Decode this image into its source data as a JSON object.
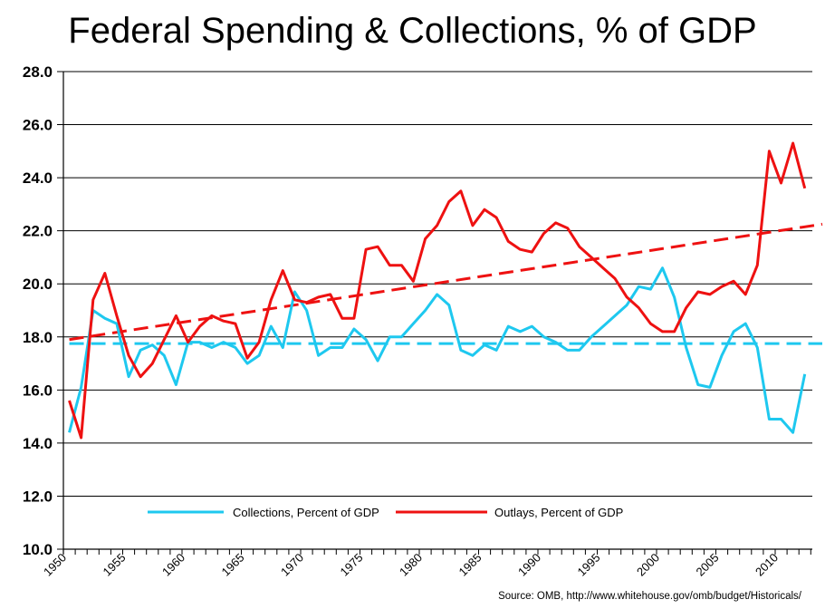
{
  "chart_data": {
    "type": "line",
    "title": "Federal Spending & Collections, % of GDP",
    "xlabel": "",
    "ylabel": "",
    "ylim": [
      10.0,
      28.0
    ],
    "yticks": [
      "10.0",
      "12.0",
      "14.0",
      "16.0",
      "18.0",
      "20.0",
      "22.0",
      "24.0",
      "26.0",
      "28.0"
    ],
    "xticks": [
      "1950",
      "1955",
      "1960",
      "1965",
      "1970",
      "1975",
      "1980",
      "1985",
      "1990",
      "1995",
      "2000",
      "2005",
      "2010"
    ],
    "x_start": 1950,
    "x_end": 2012,
    "grid": true,
    "legend_position": "bottom-inside",
    "series": [
      {
        "name": "Collections, Percent of GDP",
        "color": "#1ec8ef",
        "values": [
          14.4,
          16.1,
          19.0,
          18.7,
          18.5,
          16.5,
          17.5,
          17.7,
          17.3,
          16.2,
          17.8,
          17.8,
          17.6,
          17.8,
          17.6,
          17.0,
          17.3,
          18.4,
          17.6,
          19.7,
          19.0,
          17.3,
          17.6,
          17.6,
          18.3,
          17.9,
          17.1,
          18.0,
          18.0,
          18.5,
          19.0,
          19.6,
          19.2,
          17.5,
          17.3,
          17.7,
          17.5,
          18.4,
          18.2,
          18.4,
          18.0,
          17.8,
          17.5,
          17.5,
          18.0,
          18.4,
          18.8,
          19.2,
          19.9,
          19.8,
          20.6,
          19.5,
          17.6,
          16.2,
          16.1,
          17.3,
          18.2,
          18.5,
          17.6,
          14.9,
          14.9,
          14.4,
          16.6
        ]
      },
      {
        "name": "Outlays, Percent of GDP",
        "color": "#ee1111",
        "values": [
          15.6,
          14.2,
          19.4,
          20.4,
          18.8,
          17.3,
          16.5,
          17.0,
          17.9,
          18.8,
          17.8,
          18.4,
          18.8,
          18.6,
          18.5,
          17.2,
          17.8,
          19.4,
          20.5,
          19.4,
          19.3,
          19.5,
          19.6,
          18.7,
          18.7,
          21.3,
          21.4,
          20.7,
          20.7,
          20.1,
          21.7,
          22.2,
          23.1,
          23.5,
          22.2,
          22.8,
          22.5,
          21.6,
          21.3,
          21.2,
          21.9,
          22.3,
          22.1,
          21.4,
          21.0,
          20.6,
          20.2,
          19.5,
          19.1,
          18.5,
          18.2,
          18.2,
          19.1,
          19.7,
          19.6,
          19.9,
          20.1,
          19.6,
          20.7,
          25.0,
          23.8,
          25.3,
          23.6
        ]
      }
    ],
    "trendlines": [
      {
        "name": "Collections average",
        "color": "#1ec8ef",
        "style": "dashed",
        "start_value": 17.75,
        "end_value": 17.75
      },
      {
        "name": "Outlays trend",
        "color": "#ee1111",
        "style": "dashed",
        "start_value": 17.9,
        "end_value": 22.25
      }
    ]
  },
  "source": "Source:  OMB, http://www.whitehouse.gov/omb/budget/Historicals/"
}
